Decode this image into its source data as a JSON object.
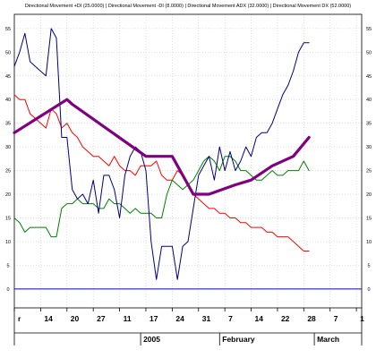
{
  "chart_data": {
    "type": "line",
    "legend_text": "Directional Movement +DI (25.0000) | Directional Movement -DI (8.0000) | Directional Movement ADX (32.0000) | Directional Movement DX (52.0000)",
    "legend_placement": "top-center",
    "y_ticks": [
      "0",
      "5",
      "10",
      "15",
      "20",
      "25",
      "30",
      "35",
      "40",
      "45",
      "50",
      "55"
    ],
    "ylim": [
      -4,
      58
    ],
    "grid": true,
    "x_tick_labels": [
      {
        "x": 0,
        "label": "r"
      },
      {
        "x": 5,
        "label": "14"
      },
      {
        "x": 10,
        "label": "20"
      },
      {
        "x": 15,
        "label": "27"
      },
      {
        "x": 20,
        "label": "11"
      },
      {
        "x": 25,
        "label": "17"
      },
      {
        "x": 30,
        "label": "24"
      },
      {
        "x": 35,
        "label": "31"
      },
      {
        "x": 40,
        "label": "7"
      },
      {
        "x": 45,
        "label": "14"
      },
      {
        "x": 50,
        "label": "22"
      },
      {
        "x": 55,
        "label": "28"
      },
      {
        "x": 60,
        "label": "7"
      },
      {
        "x": 65,
        "label": "1"
      }
    ],
    "x_group_labels": [
      {
        "x": 24,
        "label": "2005"
      },
      {
        "x": 39,
        "label": "February"
      },
      {
        "x": 57,
        "label": "March"
      }
    ],
    "xlim": [
      0,
      66
    ],
    "zero_line": 0,
    "series": [
      {
        "name": "Directional Movement -DI",
        "color": "#ff0000",
        "width": 1,
        "x": [
          0,
          1,
          2,
          3,
          4,
          5,
          6,
          7,
          8,
          9,
          10,
          11,
          12,
          13,
          14,
          15,
          16,
          17,
          18,
          19,
          20,
          21,
          22,
          23,
          24,
          25,
          26,
          27,
          28,
          29,
          30,
          31,
          32,
          33,
          34,
          35,
          36,
          37,
          38,
          39,
          40,
          41,
          42,
          43,
          44,
          45,
          46,
          47,
          48,
          49,
          50,
          51,
          52,
          53,
          54,
          55,
          56
        ],
        "values": [
          41,
          40,
          40,
          37,
          36,
          35,
          34,
          38,
          37,
          34,
          35,
          33,
          32,
          30,
          29,
          28,
          28,
          27,
          26,
          28,
          26,
          25,
          25,
          24,
          26,
          26,
          26,
          27,
          24,
          23,
          23,
          25,
          24,
          22,
          20,
          19,
          18,
          17,
          17,
          16,
          16,
          15,
          15,
          14,
          14,
          13,
          13,
          13,
          12,
          12,
          11,
          11,
          11,
          10,
          9,
          8,
          8
        ]
      },
      {
        "name": "Directional Movement +DI",
        "color": "#008000",
        "width": 1,
        "x": [
          0,
          1,
          2,
          3,
          4,
          5,
          6,
          7,
          8,
          9,
          10,
          11,
          12,
          13,
          14,
          15,
          16,
          17,
          18,
          19,
          20,
          21,
          22,
          23,
          24,
          25,
          26,
          27,
          28,
          29,
          30,
          31,
          32,
          33,
          34,
          35,
          36,
          37,
          38,
          39,
          40,
          41,
          42,
          43,
          44,
          45,
          46,
          47,
          48,
          49,
          50,
          51,
          52,
          53,
          54,
          55,
          56
        ],
        "values": [
          15,
          14,
          12,
          13,
          13,
          13,
          13,
          11,
          11,
          17,
          18,
          18,
          19,
          18,
          18,
          18,
          17,
          17,
          19,
          18,
          18,
          17,
          16,
          17,
          16,
          16,
          16,
          15,
          15,
          20,
          23,
          22,
          21,
          22,
          23,
          25,
          27,
          28,
          27,
          25,
          28,
          28,
          27,
          25,
          25,
          24,
          23,
          23,
          24,
          25,
          24,
          24,
          25,
          25,
          25,
          27,
          25
        ]
      },
      {
        "name": "Directional Movement DX",
        "color": "#000080",
        "width": 1,
        "x": [
          0,
          1,
          2,
          3,
          4,
          5,
          6,
          7,
          8,
          9,
          10,
          11,
          12,
          13,
          14,
          15,
          16,
          17,
          18,
          19,
          20,
          21,
          22,
          23,
          24,
          25,
          26,
          27,
          28,
          29,
          30,
          31,
          32,
          33,
          34,
          35,
          36,
          37,
          38,
          39,
          40,
          41,
          42,
          43,
          44,
          45,
          46,
          47,
          48,
          49,
          50,
          51,
          52,
          53,
          54,
          55,
          56
        ],
        "values": [
          47,
          50,
          54,
          48,
          47,
          46,
          45,
          55,
          53,
          32,
          32,
          21,
          19,
          20,
          18,
          23,
          16,
          24,
          24,
          21,
          15,
          24,
          28,
          30,
          29,
          25,
          10,
          2,
          9,
          9,
          9,
          2,
          9,
          10,
          17,
          24,
          26,
          28,
          23,
          30,
          25,
          29,
          25,
          27,
          30,
          28,
          32,
          33,
          33,
          35,
          38,
          41,
          43,
          46,
          50,
          52,
          52
        ]
      },
      {
        "name": "Directional Movement ADX",
        "color": "#800080",
        "width": 3.2,
        "x": [
          0,
          10,
          11,
          25,
          30,
          34,
          37,
          42,
          45,
          49,
          53,
          56
        ],
        "values": [
          33,
          40,
          39,
          28,
          28,
          20,
          20,
          22,
          23,
          26,
          28,
          32
        ]
      }
    ]
  }
}
